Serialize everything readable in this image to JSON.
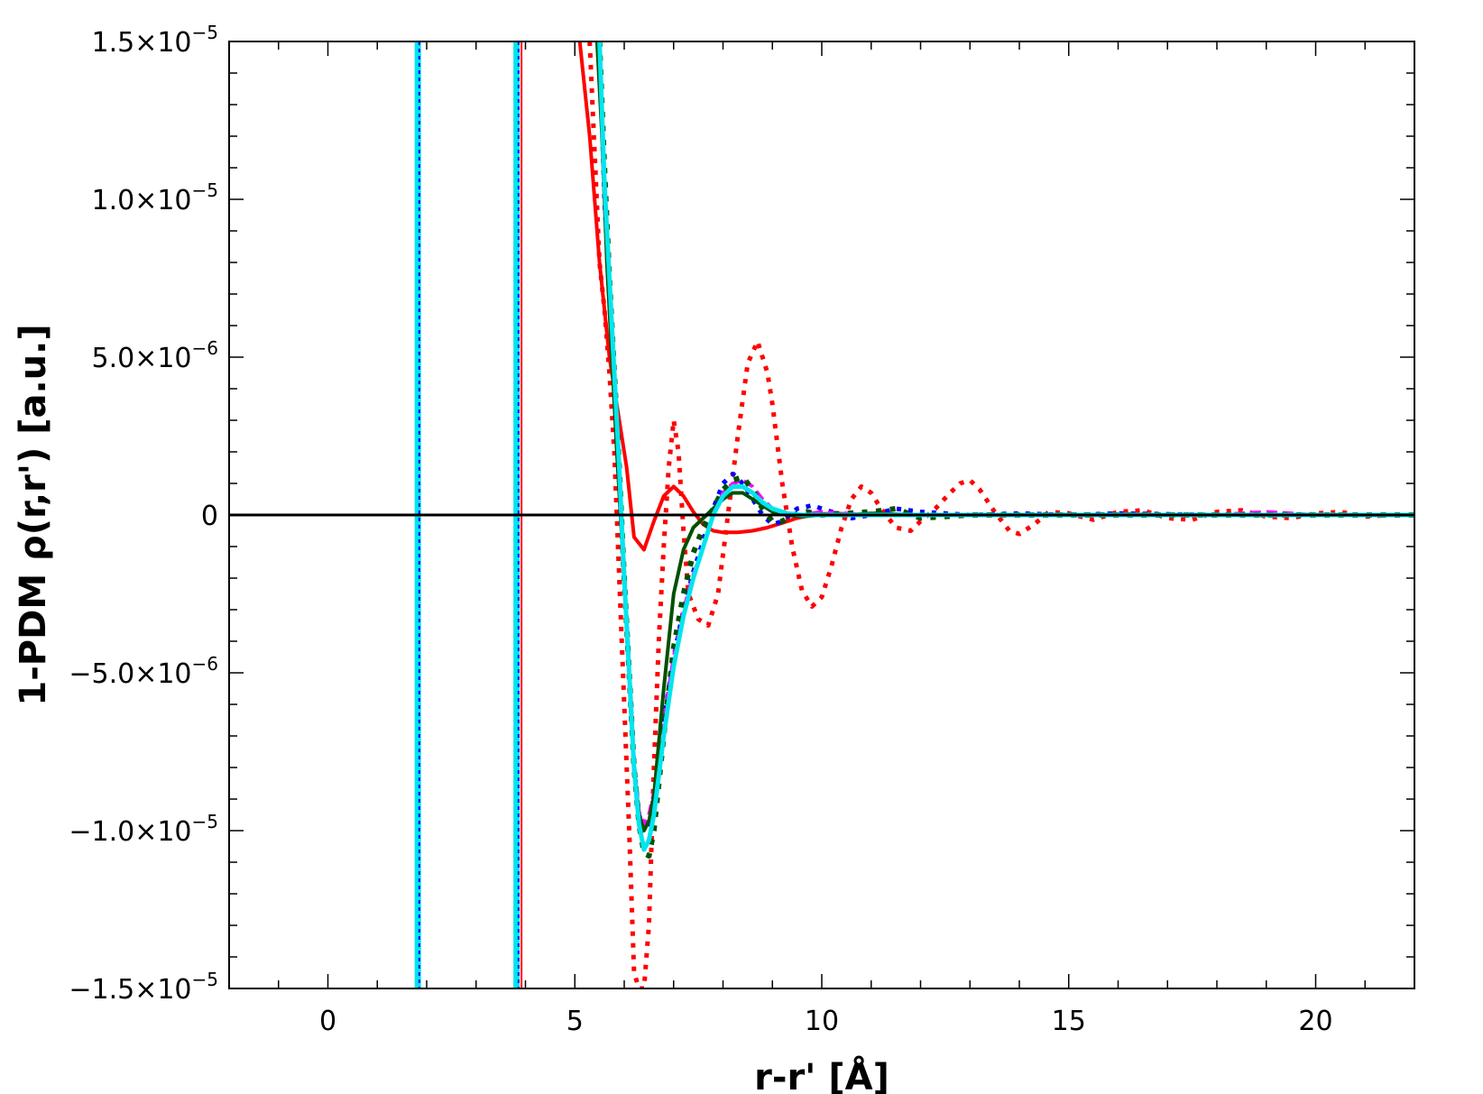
{
  "chart_data": {
    "type": "line",
    "title": "",
    "xlabel": "r-r' [Å]",
    "ylabel": "1-PDM ρ(r,r') [a.u.]",
    "xlim": [
      -2,
      22
    ],
    "ylim": [
      -1.5e-05,
      1.5e-05
    ],
    "x_ticks": [
      {
        "value": 0,
        "label": "0"
      },
      {
        "value": 5,
        "label": "5"
      },
      {
        "value": 10,
        "label": "10"
      },
      {
        "value": 15,
        "label": "15"
      },
      {
        "value": 20,
        "label": "20"
      }
    ],
    "y_ticks": [
      {
        "value": 1.5e-05,
        "mantissa": "1.5×10",
        "exp": "−5"
      },
      {
        "value": 1e-05,
        "mantissa": "1.0×10",
        "exp": "−5"
      },
      {
        "value": 5e-06,
        "mantissa": "5.0×10",
        "exp": "−6"
      },
      {
        "value": 0,
        "mantissa": "0",
        "exp": ""
      },
      {
        "value": -5e-06,
        "mantissa": "−5.0×10",
        "exp": "−6"
      },
      {
        "value": -1e-05,
        "mantissa": "−1.0×10",
        "exp": "−5"
      },
      {
        "value": -1.5e-05,
        "mantissa": "−1.5×10",
        "exp": "−5"
      }
    ],
    "zero_line": true,
    "grid": false,
    "legend": "none",
    "series": [
      {
        "color": "#ff0000",
        "style": "dotted",
        "width": 5,
        "x": [
          5.3,
          5.5,
          5.6,
          5.7,
          5.8,
          5.9,
          6.0,
          6.1,
          6.2,
          6.3,
          6.4,
          6.5,
          6.6,
          6.7,
          6.8,
          6.9,
          7.0,
          7.1,
          7.2,
          7.3,
          7.5,
          7.7,
          7.9,
          8.1,
          8.3,
          8.5,
          8.7,
          8.9,
          9.0,
          9.2,
          9.4,
          9.6,
          9.8,
          10.0,
          10.2,
          10.4,
          10.6,
          10.8,
          11.0,
          11.2,
          11.5,
          11.8,
          12.0,
          12.3,
          12.6,
          12.8,
          13.0,
          13.2,
          13.5,
          13.8,
          14.0,
          14.3,
          14.6,
          15.0,
          15.5,
          16.0,
          16.5,
          17.0,
          17.5,
          18.0,
          18.5,
          19.0,
          19.5,
          20.0,
          20.5,
          21.0,
          21.5,
          22.0
        ],
        "y": [
          1.5e-05,
          8e-06,
          6.5e-06,
          4.5e-06,
          2e-06,
          -2e-06,
          -6e-06,
          -1e-05,
          -1.45e-05,
          -1.5e-05,
          -1.5e-05,
          -1.3e-05,
          -8e-06,
          -4e-06,
          -1e-06,
          1.5e-06,
          3e-06,
          2e-06,
          -5e-07,
          -2.5e-06,
          -3.3e-06,
          -3.5e-06,
          -2.5e-06,
          0,
          2.5e-06,
          4.8e-06,
          5.5e-06,
          4.5e-06,
          3.5e-06,
          1e-06,
          -1e-06,
          -2.4e-06,
          -2.9e-06,
          -2.6e-06,
          -1.6e-06,
          -4e-07,
          5e-07,
          9e-07,
          7e-07,
          2e-07,
          -4e-07,
          -5e-07,
          -2e-07,
          2e-07,
          7e-07,
          1e-06,
          1.1e-06,
          8e-07,
          1e-07,
          -5e-07,
          -6e-07,
          -3e-07,
          1e-07,
          5e-08,
          -1.5e-07,
          1e-07,
          1.5e-07,
          -1e-07,
          -1.5e-07,
          1e-07,
          1.5e-07,
          -5e-08,
          -1e-07,
          5e-08,
          1e-07,
          -5e-08,
          0.0,
          0.0
        ]
      },
      {
        "color": "#ff0000",
        "style": "solid",
        "width": 4,
        "x": [
          5.1,
          5.3,
          5.5,
          5.7,
          5.9,
          6.05,
          6.2,
          6.4,
          6.6,
          6.8,
          7.0,
          7.2,
          7.4,
          7.6,
          7.8,
          8.0,
          8.3,
          8.6,
          8.9,
          9.2,
          9.5,
          9.8,
          10.2,
          10.6,
          11.0,
          12.0,
          14.0,
          16.0,
          18.0,
          20.0,
          22.0
        ],
        "y": [
          1.5e-05,
          1.2e-05,
          8e-06,
          5e-06,
          3e-06,
          1.5e-06,
          -7e-07,
          -1.1e-06,
          -2e-07,
          6e-07,
          9e-07,
          6e-07,
          1e-07,
          -3e-07,
          -5e-07,
          -5.5e-07,
          -5.5e-07,
          -5e-07,
          -4e-07,
          -2.5e-07,
          -1e-07,
          0.0,
          5e-08,
          3e-08,
          0.0,
          0.0,
          0.0,
          0.0,
          0.0,
          0.0,
          0.0
        ]
      },
      {
        "color": "#0000ff",
        "style": "dotted",
        "width": 5,
        "x": [
          5.5,
          5.6,
          5.7,
          5.8,
          5.9,
          6.0,
          6.1,
          6.2,
          6.3,
          6.4,
          6.5,
          6.6,
          6.8,
          7.0,
          7.2,
          7.4,
          7.6,
          7.8,
          8.0,
          8.2,
          8.4,
          8.6,
          8.8,
          9.0,
          9.2,
          9.5,
          9.8,
          10.2,
          10.6,
          11.0,
          11.5,
          12.0,
          13.0,
          14.0,
          15.0,
          16.0,
          18.0,
          20.0,
          22.0
        ],
        "y": [
          1.5e-05,
          1e-05,
          7e-06,
          4e-06,
          1e-06,
          -2e-06,
          -5e-06,
          -8e-06,
          -9.5e-06,
          -1e-05,
          -9.8e-06,
          -9e-06,
          -6.5e-06,
          -4.5e-06,
          -3e-06,
          -1.8e-06,
          -8e-07,
          2e-07,
          1e-06,
          1.3e-06,
          1e-06,
          5e-07,
          0.0,
          -3e-07,
          -2e-07,
          2e-07,
          3e-07,
          1e-07,
          -1e-07,
          0.0,
          2e-07,
          1e-07,
          0.0,
          5e-08,
          0.0,
          5e-08,
          0.0,
          0.0,
          0.0
        ]
      },
      {
        "color": "#ff00ff",
        "style": "dashed",
        "width": 4,
        "x": [
          5.5,
          5.6,
          5.7,
          5.8,
          5.9,
          6.0,
          6.1,
          6.2,
          6.3,
          6.4,
          6.5,
          6.6,
          6.8,
          7.0,
          7.2,
          7.4,
          7.6,
          7.8,
          8.0,
          8.2,
          8.4,
          8.6,
          8.8,
          9.0,
          9.3,
          9.6,
          10.0,
          10.5,
          11.0,
          12.0,
          13.0,
          14.0,
          15.0,
          16.0,
          17.0,
          18.0,
          19.0,
          20.0,
          21.0,
          22.0
        ],
        "y": [
          1.5e-05,
          1e-05,
          7e-06,
          4e-06,
          1e-06,
          -2e-06,
          -5e-06,
          -8e-06,
          -9.4e-06,
          -9.8e-06,
          -9.5e-06,
          -8.8e-06,
          -6.5e-06,
          -4.5e-06,
          -3e-06,
          -1.9e-06,
          -1e-06,
          0.0,
          7e-07,
          1e-06,
          1.1e-06,
          9e-07,
          5e-07,
          2e-07,
          0.0,
          0.0,
          1e-07,
          5e-08,
          0.0,
          0.0,
          0.0,
          0.0,
          0.0,
          0.0,
          0.0,
          0.0,
          1e-07,
          0.0,
          0.0,
          0.0
        ]
      },
      {
        "color": "#005000",
        "style": "solid",
        "width": 4,
        "x": [
          5.45,
          5.55,
          5.65,
          5.75,
          5.85,
          6.0,
          6.1,
          6.2,
          6.3,
          6.4,
          6.5,
          6.6,
          6.8,
          7.0,
          7.2,
          7.4,
          7.6,
          7.8,
          8.0,
          8.2,
          8.4,
          8.6,
          8.8,
          9.0,
          9.3,
          9.6,
          10.0,
          10.5,
          11.0,
          12.0,
          13.0,
          14.0,
          16.0,
          18.0,
          20.0,
          22.0
        ],
        "y": [
          1.5e-05,
          1.2e-05,
          8e-06,
          5e-06,
          2e-06,
          -2e-06,
          -5e-06,
          -8e-06,
          -9.5e-06,
          -1e-05,
          -9.7e-06,
          -8.9e-06,
          -5.5e-06,
          -2.5e-06,
          -1.1e-06,
          -4e-07,
          -1e-07,
          2e-07,
          5e-07,
          7e-07,
          7e-07,
          5e-07,
          3e-07,
          1e-07,
          0.0,
          -5e-08,
          0.0,
          0.0,
          5e-08,
          0.0,
          0.0,
          0.0,
          0.0,
          0.0,
          0.0,
          0.0
        ]
      },
      {
        "color": "#005000",
        "style": "dotted",
        "width": 6,
        "x": [
          5.5,
          5.6,
          5.7,
          5.8,
          5.9,
          6.0,
          6.1,
          6.2,
          6.3,
          6.4,
          6.5,
          6.6,
          6.8,
          7.0,
          7.2,
          7.4,
          7.6,
          7.8,
          8.0,
          8.2,
          8.4,
          8.6,
          8.8,
          9.0,
          9.2,
          9.4,
          9.7,
          10.0,
          10.5,
          11.0,
          11.5,
          12.0,
          13.0,
          14.0,
          15.0,
          16.0,
          18.0,
          20.0,
          22.0
        ],
        "y": [
          1.5e-05,
          1.1e-05,
          7.5e-06,
          4.5e-06,
          1.5e-06,
          -2e-06,
          -5e-06,
          -8e-06,
          -9.8e-06,
          -1.07e-05,
          -1.08e-05,
          -1e-05,
          -7e-06,
          -4.2e-06,
          -2.5e-06,
          -1.2e-06,
          -4e-07,
          2e-07,
          8e-07,
          1.1e-06,
          1.2e-06,
          8e-07,
          2e-07,
          -2e-07,
          -2e-07,
          0.0,
          1e-07,
          0.0,
          5e-08,
          1e-07,
          2e-07,
          -1e-07,
          0.0,
          0.0,
          0.0,
          0.0,
          0.0,
          0.0,
          0.0
        ]
      },
      {
        "color": "#00e5ee",
        "style": "solid",
        "width": 5,
        "x": [
          5.5,
          5.6,
          5.7,
          5.8,
          5.9,
          6.0,
          6.1,
          6.2,
          6.3,
          6.4,
          6.5,
          6.6,
          6.8,
          7.0,
          7.2,
          7.4,
          7.6,
          7.8,
          8.0,
          8.2,
          8.4,
          8.6,
          8.8,
          9.0,
          9.3,
          9.6,
          10.0,
          10.5,
          11.0,
          12.0,
          14.0,
          16.0,
          18.0,
          20.0,
          22.0
        ],
        "y": [
          1.5e-05,
          1.05e-05,
          7.5e-06,
          4.5e-06,
          1.5e-06,
          -2e-06,
          -5e-06,
          -8e-06,
          -9.8e-06,
          -1.06e-05,
          -1.03e-05,
          -9.5e-06,
          -7e-06,
          -4.8e-06,
          -3.2e-06,
          -2e-06,
          -1e-06,
          0.0,
          6e-07,
          9e-07,
          9e-07,
          7e-07,
          4e-07,
          2e-07,
          5e-08,
          0.0,
          0.0,
          0.0,
          0.0,
          0.0,
          0.0,
          0.0,
          0.0,
          0.0,
          0.0
        ]
      }
    ],
    "vertical_spikes": [
      {
        "x": 1.82,
        "color": "#00e5ee",
        "width": 7
      },
      {
        "x": 1.85,
        "color": "#0000ff",
        "width": 2,
        "dash": "4,4"
      },
      {
        "x": 3.82,
        "color": "#00e5ee",
        "width": 7
      },
      {
        "x": 3.86,
        "color": "#0000ff",
        "width": 2,
        "dash": "4,4"
      },
      {
        "x": 3.92,
        "color": "#ff0000",
        "width": 2
      }
    ]
  }
}
